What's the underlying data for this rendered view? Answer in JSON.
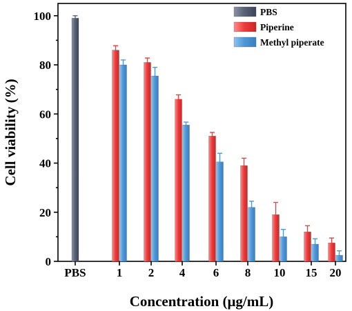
{
  "chart_data": {
    "type": "bar",
    "categories": [
      "PBS",
      "1",
      "2",
      "4",
      "6",
      "8",
      "10",
      "15",
      "20"
    ],
    "series": [
      {
        "name": "PBS",
        "color": "#5a6477",
        "values": [
          99,
          null,
          null,
          null,
          null,
          null,
          null,
          null,
          null
        ],
        "errors": [
          1,
          null,
          null,
          null,
          null,
          null,
          null,
          null,
          null
        ]
      },
      {
        "name": "Piperine",
        "color": "#ee3e3e",
        "values": [
          null,
          86,
          81,
          66,
          51,
          39,
          19,
          12,
          7.5
        ],
        "errors": [
          null,
          1.8,
          1.8,
          1.8,
          1.5,
          3,
          5,
          2.5,
          2
        ]
      },
      {
        "name": "Methyl piperate",
        "color": "#4f98d8",
        "values": [
          null,
          80,
          75.5,
          55.5,
          40.5,
          22,
          10,
          7,
          2.5
        ],
        "errors": [
          null,
          2,
          3.5,
          1.2,
          3.5,
          2.5,
          3,
          2.2,
          1.8
        ]
      }
    ],
    "xlabel": "Concentration (μg/mL)",
    "ylabel": "Cell viability (%)",
    "ylim": [
      0,
      105
    ],
    "yticks": [
      0,
      20,
      40,
      60,
      80,
      100
    ],
    "grid": false,
    "legend_position": "top-right"
  }
}
